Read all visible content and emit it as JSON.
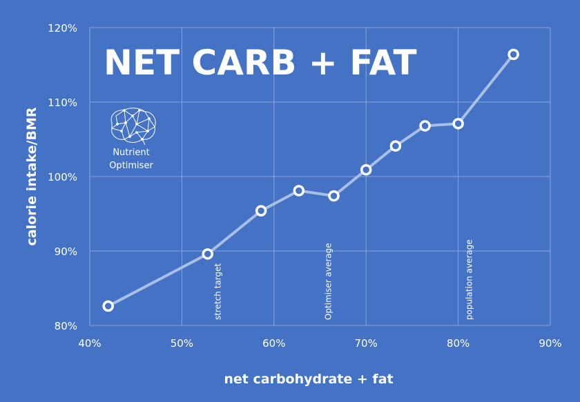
{
  "chart_data": {
    "type": "line",
    "title": "NET CARB + FAT",
    "xlabel": "net carbohydrate + fat",
    "ylabel": "calorie intake/BMR",
    "xlim": [
      40,
      90
    ],
    "ylim": [
      80,
      120
    ],
    "x_ticks": [
      40,
      50,
      60,
      70,
      80,
      90
    ],
    "x_tick_labels": [
      "40%",
      "50%",
      "60%",
      "70%",
      "80%",
      "90%"
    ],
    "y_ticks": [
      80,
      90,
      100,
      110,
      120
    ],
    "y_tick_labels": [
      "80%",
      "90%",
      "100%",
      "110%",
      "120%"
    ],
    "grid": true,
    "series": [
      {
        "x": [
          42,
          52.8,
          58.6,
          62.7,
          66.5,
          70,
          73.2,
          76.4,
          80,
          86
        ],
        "y": [
          82.6,
          89.6,
          95.4,
          98.1,
          97.4,
          100.9,
          104.1,
          106.8,
          107.1,
          116.4
        ]
      }
    ],
    "annotations": [
      {
        "text": "stretch target",
        "x": 53.9
      },
      {
        "text": "Optimiser average",
        "x": 65.9
      },
      {
        "text": "population average",
        "x": 81.2
      }
    ]
  },
  "logo": {
    "line1": "Nutrient",
    "line2": "Optimiser",
    "icon": "brain-network-icon"
  },
  "colors": {
    "background": "#4472c4",
    "line": "#a9bfe6",
    "marker_fill": "#4472c4",
    "marker_stroke": "#ffffff",
    "grid": "#8aa6da"
  }
}
